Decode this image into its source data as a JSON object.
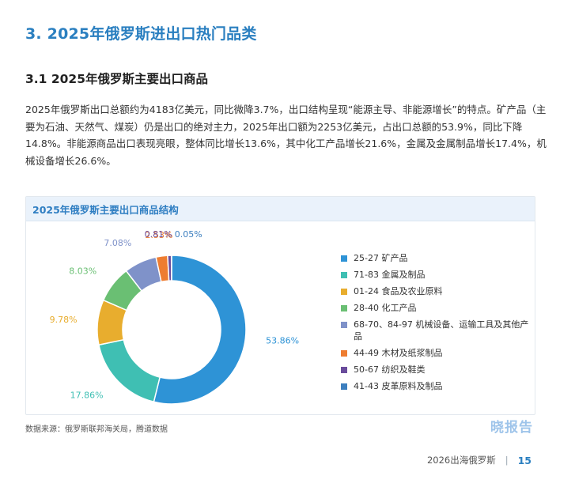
{
  "section_title": "3. 2025年俄罗斯进出口热门品类",
  "sub_title": "3.1 2025年俄罗斯主要出口商品",
  "body_text": "2025年俄罗斯出口总额约为4183亿美元，同比微降3.7%，出口结构呈现“能源主导、非能源增长”的特点。矿产品（主要为石油、天然气、煤炭）仍是出口的绝对主力，2025年出口额为2253亿美元，占出口总额的53.9%，同比下降14.8%。非能源商品出口表现亮眼，整体同比增长13.6%，其中化工产品增长21.6%，金属及金属制品增长17.4%，机械设备增长26.6%。",
  "chart_data": {
    "type": "pie",
    "title": "2025年俄罗斯主要出口商品结构",
    "legend_position": "right",
    "categories": [
      "25-27 矿产品",
      "71-83 金属及制品",
      "01-24 食品及农业原料",
      "28-40 化工产品",
      "68-70、84-97 机械设备、运输工具及其他产品",
      "44-49 木材及纸浆制品",
      "50-67 纺织及鞋类",
      "41-43 皮革原料及制品"
    ],
    "values": [
      53.86,
      17.86,
      9.78,
      8.03,
      7.08,
      2.53,
      0.81,
      0.05
    ],
    "labels": [
      "53.86%",
      "17.86%",
      "9.78%",
      "8.03%",
      "7.08%",
      "2.53%",
      "0.81%",
      "0.05%"
    ],
    "colors": [
      "#2e93d6",
      "#3fbfb3",
      "#e8ad2e",
      "#6abf73",
      "#7f92c9",
      "#ee7d31",
      "#6a4c9c",
      "#3d7fbf"
    ]
  },
  "source": "数据来源：俄罗斯联邦海关局，腾道数据",
  "brand": "晓报告",
  "footer": {
    "doc_title": "2026出海俄罗斯",
    "separator": "|",
    "page_number": "15"
  }
}
